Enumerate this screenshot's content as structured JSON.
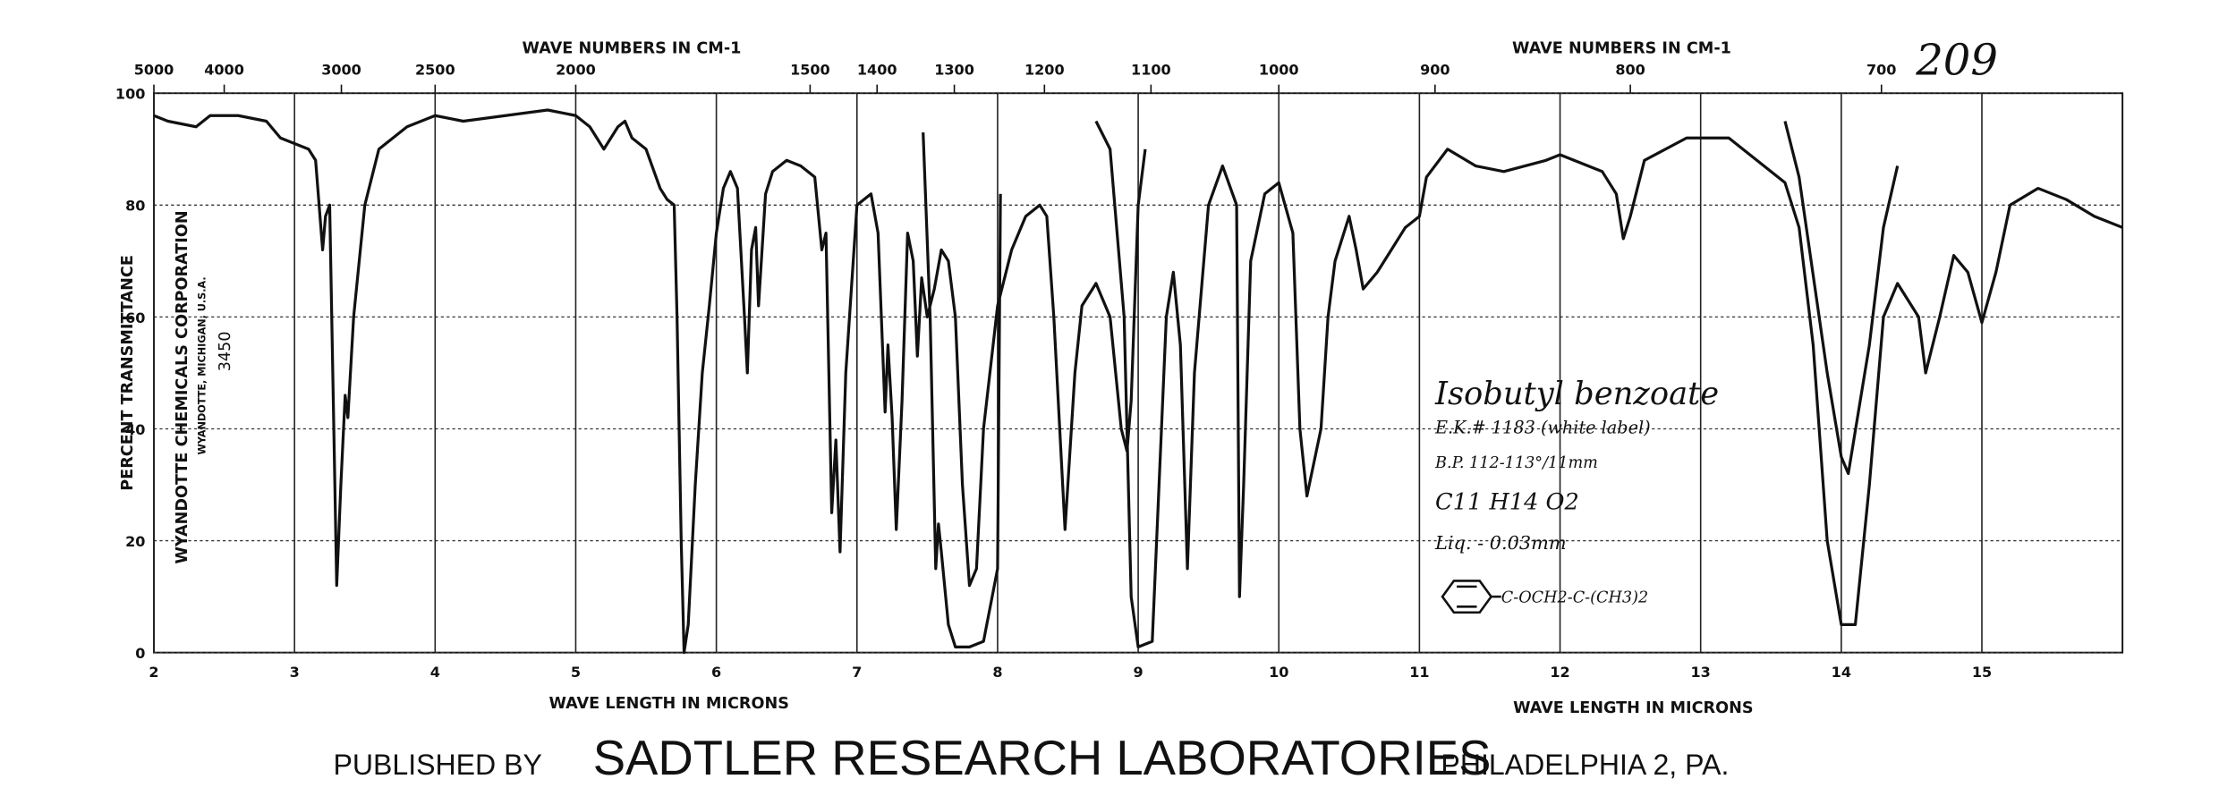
{
  "chart_data": {
    "type": "line",
    "top_label_left": "WAVE NUMBERS IN CM-1",
    "top_label_right": "WAVE NUMBERS IN CM-1",
    "xlabel_left": "WAVE LENGTH IN MICRONS",
    "xlabel_right": "WAVE LENGTH IN MICRONS",
    "ylabel": "PERCENT TRANSMITTANCE",
    "corporation": "WYANDOTTE CHEMICALS CORPORATION",
    "location": "WYANDOTTE, MICHIGAN, U.S.A.",
    "sample_number": "3450",
    "page_number": "209",
    "annotations": [
      "Isobutyl benzoate",
      "E.K.# 1183 (white label)",
      "B.P. 112-113°/11mm",
      "C11 H14 O2",
      "Liq. - 0.03mm",
      "C-OCH2-C-(CH3)2"
    ],
    "publisher": [
      "PUBLISHED BY",
      "SADTLER RESEARCH LABORATORIES",
      "PHILADELPHIA 2, PA."
    ],
    "xlim": [
      2,
      16
    ],
    "ylim": [
      0,
      100
    ],
    "xticks": [
      2,
      3,
      4,
      5,
      6,
      7,
      8,
      9,
      10,
      11,
      12,
      13,
      14,
      15
    ],
    "yticks": [
      0,
      20,
      40,
      60,
      80,
      100
    ],
    "x2ticks": [
      5000,
      4000,
      3000,
      2500,
      2000,
      1500,
      1400,
      1300,
      1200,
      1100,
      1000,
      900,
      800,
      700
    ],
    "grid": true,
    "x": [
      2.0,
      2.1,
      2.3,
      2.4,
      2.6,
      2.8,
      2.9,
      3.0,
      3.1,
      3.15,
      3.2,
      3.22,
      3.25,
      3.28,
      3.3,
      3.33,
      3.36,
      3.38,
      3.42,
      3.5,
      3.6,
      3.8,
      4.0,
      4.2,
      4.5,
      4.8,
      5.0,
      5.1,
      5.2,
      5.3,
      5.35,
      5.4,
      5.5,
      5.6,
      5.65,
      5.7,
      5.72,
      5.75,
      5.77,
      5.8,
      5.85,
      5.9,
      5.95,
      6.0,
      6.05,
      6.1,
      6.15,
      6.2,
      6.22,
      6.25,
      6.28,
      6.3,
      6.35,
      6.4,
      6.5,
      6.6,
      6.7,
      6.75,
      6.78,
      6.82,
      6.85,
      6.88,
      6.92,
      7.0,
      7.1,
      7.15,
      7.2,
      7.22,
      7.25,
      7.28,
      7.32,
      7.36,
      7.4,
      7.43,
      7.46,
      7.5,
      7.55,
      7.6,
      7.65,
      7.7,
      7.75,
      7.8,
      7.85,
      7.9,
      8.0,
      8.1,
      8.2,
      8.3,
      8.35,
      8.4,
      8.48,
      8.55,
      8.6,
      8.7,
      8.8,
      8.88,
      8.92,
      8.95,
      9.0,
      9.05,
      null,
      7.47,
      7.52,
      7.56,
      7.58,
      7.6,
      7.65,
      7.7,
      7.8,
      7.9,
      8.0,
      8.02,
      null,
      8.7,
      8.8,
      8.9,
      8.95,
      9.0,
      9.1,
      9.2,
      9.25,
      9.3,
      9.35,
      9.4,
      9.5,
      9.6,
      9.7,
      9.72,
      9.75,
      9.8,
      9.9,
      10.0,
      10.1,
      10.15,
      10.2,
      10.3,
      10.35,
      10.4,
      10.5,
      10.55,
      10.6,
      10.7,
      10.8,
      10.9,
      11.0,
      11.05,
      11.2,
      11.4,
      11.6,
      11.9,
      12.0,
      12.3,
      12.4,
      12.45,
      12.5,
      12.6,
      12.9,
      13.2,
      13.4,
      13.6,
      13.7,
      13.8,
      13.9,
      14.0,
      14.1,
      14.2,
      14.3,
      14.4,
      14.55,
      14.6,
      14.7,
      14.8,
      14.9,
      15.0,
      15.1,
      15.2,
      15.4,
      15.6,
      15.8,
      16.0,
      null,
      13.6,
      13.7,
      13.9,
      14.0,
      14.05,
      14.2,
      14.3,
      14.4
    ],
    "series": [
      {
        "color": "#111111",
        "values": [
          96,
          95,
          94,
          96,
          96,
          95,
          92,
          91,
          90,
          88,
          72,
          78,
          80,
          40,
          12,
          30,
          46,
          42,
          60,
          80,
          90,
          94,
          96,
          95,
          96,
          97,
          96,
          94,
          90,
          94,
          95,
          92,
          90,
          83,
          81,
          80,
          60,
          20,
          0,
          5,
          30,
          50,
          62,
          75,
          83,
          86,
          83,
          60,
          50,
          72,
          76,
          62,
          82,
          86,
          88,
          87,
          85,
          72,
          75,
          25,
          38,
          18,
          50,
          80,
          82,
          75,
          43,
          55,
          42,
          22,
          45,
          75,
          70,
          53,
          67,
          60,
          65,
          72,
          70,
          60,
          30,
          12,
          15,
          40,
          62,
          72,
          78,
          80,
          78,
          60,
          22,
          50,
          62,
          66,
          60,
          40,
          36,
          45,
          80,
          90,
          null,
          93,
          60,
          15,
          23,
          18,
          5,
          1,
          1,
          2,
          15,
          82,
          null,
          95,
          90,
          60,
          10,
          1,
          2,
          60,
          68,
          55,
          15,
          50,
          80,
          87,
          80,
          10,
          30,
          70,
          82,
          84,
          75,
          40,
          28,
          40,
          60,
          70,
          78,
          72,
          65,
          68,
          72,
          76,
          78,
          85,
          90,
          87,
          86,
          88,
          89,
          86,
          82,
          74,
          78,
          88,
          92,
          92,
          88,
          84,
          76,
          55,
          20,
          5,
          5,
          30,
          60,
          66,
          60,
          50,
          60,
          71,
          68,
          59,
          68,
          80,
          83,
          81,
          78,
          76,
          null,
          95,
          85,
          50,
          35,
          32,
          55,
          76,
          87
        ]
      }
    ]
  }
}
